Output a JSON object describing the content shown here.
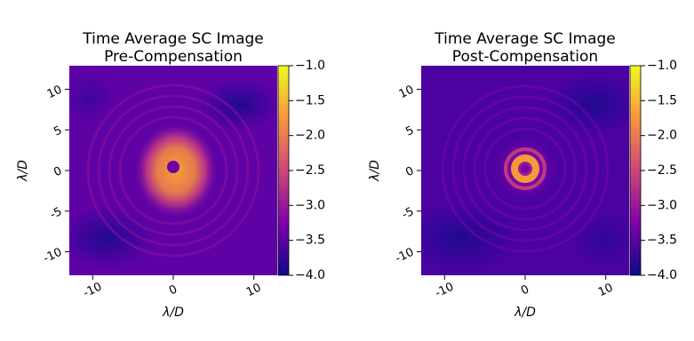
{
  "chart_data": [
    {
      "type": "heatmap",
      "title": "Time Average SC Image",
      "subtitle": "Pre-Compensation",
      "xlabel": "λ/D",
      "ylabel": "λ/D",
      "xlim": [
        -12.9,
        12.9
      ],
      "ylim": [
        -12.9,
        12.9
      ],
      "xticks": [
        -10,
        0,
        10
      ],
      "yticks": [
        -10,
        -5,
        0,
        5,
        10
      ],
      "colorbar": {
        "lim": [
          -4,
          -1
        ],
        "ticks": [
          {
            "value": -1,
            "label": "−1.0"
          },
          {
            "value": -1.5,
            "label": "−1.5"
          },
          {
            "value": -2,
            "label": "−2.0"
          },
          {
            "value": -2.5,
            "label": "−2.5"
          },
          {
            "value": -3,
            "label": "−3.0"
          },
          {
            "value": -3.5,
            "label": "−3.5"
          },
          {
            "value": -4,
            "label": "−4.0"
          }
        ]
      }
    },
    {
      "type": "heatmap",
      "title": "Time Average SC Image",
      "subtitle": "Post-Compensation",
      "xlabel": "λ/D",
      "ylabel": "λ/D",
      "xlim": [
        -12.9,
        12.9
      ],
      "ylim": [
        -12.9,
        12.9
      ],
      "xticks": [
        -10,
        0,
        10
      ],
      "yticks": [
        -10,
        -5,
        0,
        5,
        10
      ],
      "colorbar": {
        "lim": [
          -4,
          -1
        ],
        "ticks": [
          {
            "value": -1,
            "label": "−1.0"
          },
          {
            "value": -1.5,
            "label": "−1.5"
          },
          {
            "value": -2,
            "label": "−2.0"
          },
          {
            "value": -2.5,
            "label": "−2.5"
          },
          {
            "value": -3,
            "label": "−3.0"
          },
          {
            "value": -3.5,
            "label": "−3.5"
          },
          {
            "value": -4,
            "label": "−4.0"
          }
        ]
      }
    }
  ]
}
